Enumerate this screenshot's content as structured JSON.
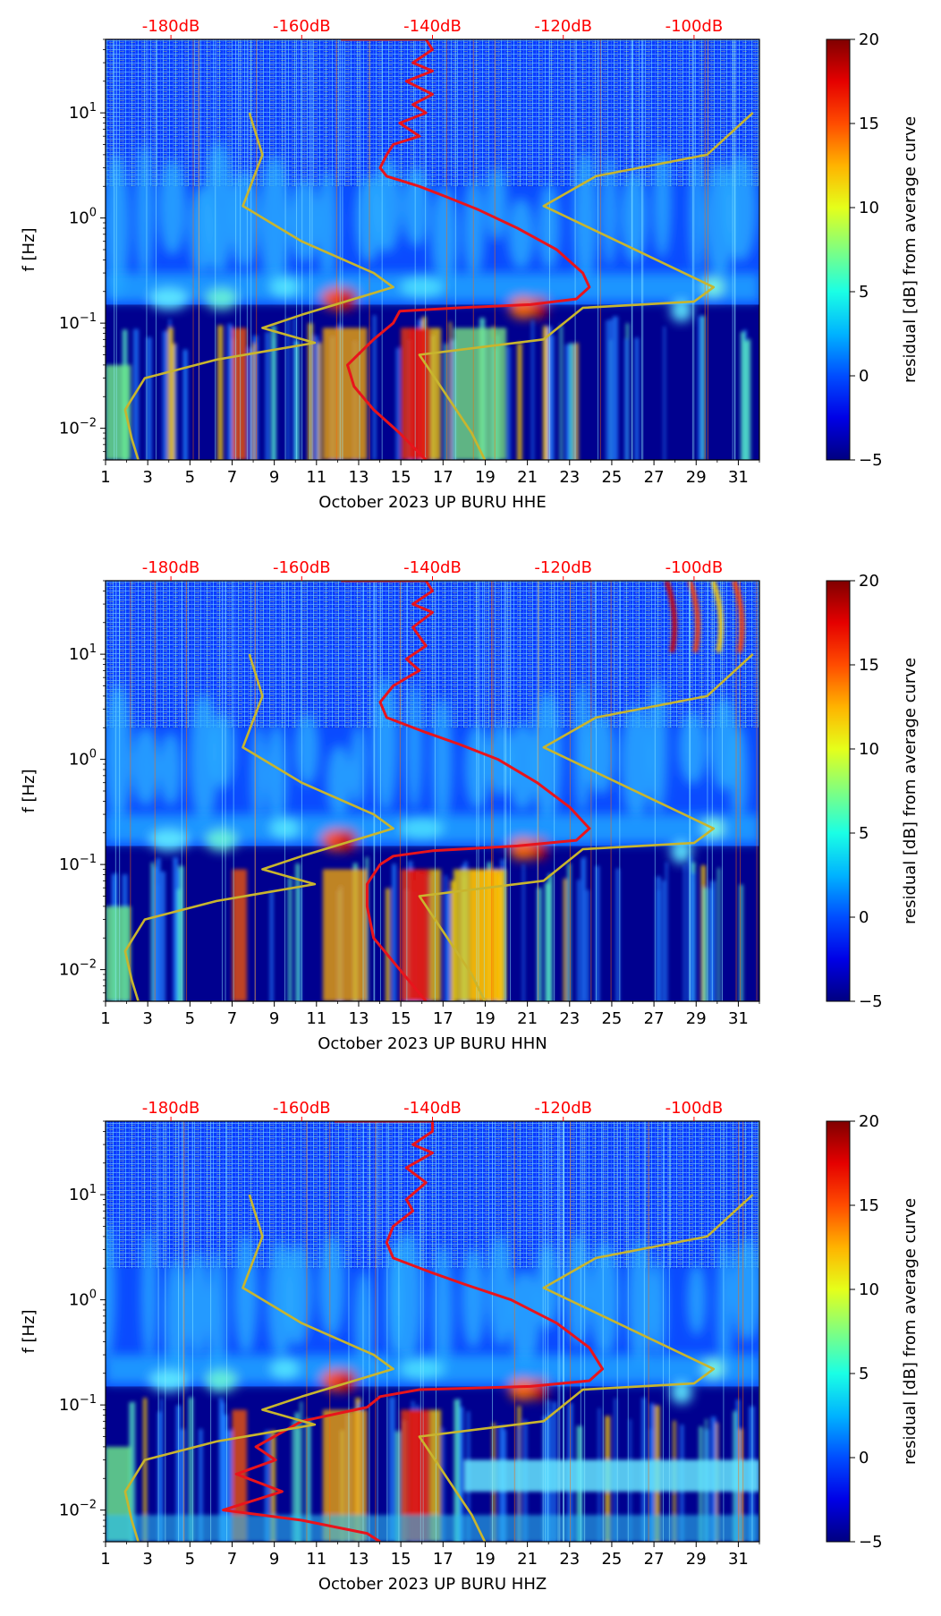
{
  "colors": {
    "psd_curve": "#e8141c",
    "noise_model": "#c8b52e",
    "top_axis": "#ff0000"
  },
  "colorbar": {
    "label": "residual [dB] from average curve",
    "colormap": "jet",
    "ticks": [
      "20",
      "15",
      "10",
      "5",
      "0",
      "−5"
    ],
    "range": [
      -5,
      20
    ]
  },
  "chart_data": [
    {
      "type": "heatmap",
      "xlabel": "October 2023 UP BURU  HHE",
      "ylabel": "f [Hz]",
      "xticks": [
        "1",
        "3",
        "5",
        "7",
        "9",
        "11",
        "13",
        "15",
        "17",
        "19",
        "21",
        "23",
        "25",
        "27",
        "29",
        "31"
      ],
      "xlim": [
        1,
        32
      ],
      "yticks": [
        {
          "base": "10",
          "exp": "1"
        },
        {
          "base": "10",
          "exp": "0"
        },
        {
          "base": "10",
          "exp": "−1"
        },
        {
          "base": "10",
          "exp": "−2"
        }
      ],
      "ylim": [
        0.005,
        50
      ],
      "top_ticks": [
        "-180dB",
        "-160dB",
        "-140dB",
        "-120dB",
        "-100dB"
      ],
      "top_range_db": [
        -190,
        -90
      ],
      "series": [
        {
          "name": "",
          "color": "#e8141c",
          "points_db_hz": [
            [
              -154,
              50
            ],
            [
              -141,
              50
            ],
            [
              -140,
              40
            ],
            [
              -143,
              30
            ],
            [
              -140,
              25
            ],
            [
              -144,
              20
            ],
            [
              -140,
              15
            ],
            [
              -143,
              12
            ],
            [
              -141,
              10
            ],
            [
              -145,
              8
            ],
            [
              -142,
              6
            ],
            [
              -146,
              5
            ],
            [
              -147,
              4
            ],
            [
              -148,
              3
            ],
            [
              -147,
              2.5
            ],
            [
              -142,
              2
            ],
            [
              -138,
              1.6
            ],
            [
              -133,
              1.2
            ],
            [
              -127,
              0.8
            ],
            [
              -121,
              0.5
            ],
            [
              -117,
              0.3
            ],
            [
              -116,
              0.22
            ],
            [
              -118,
              0.17
            ],
            [
              -125,
              0.15
            ],
            [
              -136,
              0.14
            ],
            [
              -145,
              0.13
            ],
            [
              -146,
              0.1
            ],
            [
              -149,
              0.07
            ],
            [
              -153,
              0.04
            ],
            [
              -152,
              0.025
            ],
            [
              -149,
              0.015
            ],
            [
              -145,
              0.009
            ],
            [
              -141,
              0.005
            ]
          ]
        },
        {
          "name": "",
          "color": "#c8b52e",
          "points_db_hz": [
            [
              -168,
              10
            ],
            [
              -166,
              4
            ],
            [
              -169,
              1.3
            ],
            [
              -160,
              0.6
            ],
            [
              -149,
              0.3
            ],
            [
              -146,
              0.22
            ],
            [
              -160,
              0.12
            ],
            [
              -166,
              0.09
            ],
            [
              -158,
              0.065
            ],
            [
              -173,
              0.045
            ],
            [
              -184,
              0.03
            ],
            [
              -187,
              0.015
            ],
            [
              -186,
              0.008
            ],
            [
              -185,
              0.005
            ]
          ]
        },
        {
          "name": "",
          "color": "#c8b52e",
          "points_db_hz": [
            [
              -91,
              10
            ],
            [
              -98,
              4
            ],
            [
              -115,
              2.5
            ],
            [
              -123,
              1.3
            ],
            [
              -97,
              0.22
            ],
            [
              -100,
              0.16
            ],
            [
              -117,
              0.14
            ],
            [
              -123,
              0.07
            ],
            [
              -142,
              0.05
            ],
            [
              -134,
              0.009
            ],
            [
              -132,
              0.005
            ]
          ]
        }
      ]
    },
    {
      "type": "heatmap",
      "xlabel": "October 2023 UP BURU  HHN",
      "ylabel": "f [Hz]",
      "xticks": [
        "1",
        "3",
        "5",
        "7",
        "9",
        "11",
        "13",
        "15",
        "17",
        "19",
        "21",
        "23",
        "25",
        "27",
        "29",
        "31"
      ],
      "xlim": [
        1,
        32
      ],
      "yticks": [
        {
          "base": "10",
          "exp": "1"
        },
        {
          "base": "10",
          "exp": "0"
        },
        {
          "base": "10",
          "exp": "−1"
        },
        {
          "base": "10",
          "exp": "−2"
        }
      ],
      "ylim": [
        0.005,
        50
      ],
      "top_ticks": [
        "-180dB",
        "-160dB",
        "-140dB",
        "-120dB",
        "-100dB"
      ],
      "top_range_db": [
        -190,
        -90
      ],
      "series": [
        {
          "name": "",
          "color": "#e8141c",
          "points_db_hz": [
            [
              -154,
              50
            ],
            [
              -141,
              50
            ],
            [
              -140,
              40
            ],
            [
              -143,
              30
            ],
            [
              -140,
              25
            ],
            [
              -143,
              18
            ],
            [
              -141,
              12
            ],
            [
              -144,
              9
            ],
            [
              -142,
              7
            ],
            [
              -146,
              5
            ],
            [
              -148,
              3.5
            ],
            [
              -147,
              2.5
            ],
            [
              -141,
              1.8
            ],
            [
              -136,
              1.4
            ],
            [
              -130,
              1
            ],
            [
              -124,
              0.6
            ],
            [
              -119,
              0.35
            ],
            [
              -116,
              0.22
            ],
            [
              -118,
              0.17
            ],
            [
              -127,
              0.15
            ],
            [
              -140,
              0.135
            ],
            [
              -146,
              0.12
            ],
            [
              -148,
              0.1
            ],
            [
              -150,
              0.065
            ],
            [
              -150,
              0.04
            ],
            [
              -149,
              0.02
            ],
            [
              -145,
              0.01
            ],
            [
              -141,
              0.005
            ]
          ]
        },
        {
          "name": "",
          "color": "#c8b52e",
          "points_db_hz": [
            [
              -168,
              10
            ],
            [
              -166,
              4
            ],
            [
              -169,
              1.3
            ],
            [
              -160,
              0.6
            ],
            [
              -149,
              0.3
            ],
            [
              -146,
              0.22
            ],
            [
              -160,
              0.12
            ],
            [
              -166,
              0.09
            ],
            [
              -158,
              0.065
            ],
            [
              -173,
              0.045
            ],
            [
              -184,
              0.03
            ],
            [
              -187,
              0.015
            ],
            [
              -186,
              0.008
            ],
            [
              -185,
              0.005
            ]
          ]
        },
        {
          "name": "",
          "color": "#c8b52e",
          "points_db_hz": [
            [
              -91,
              10
            ],
            [
              -98,
              4
            ],
            [
              -115,
              2.5
            ],
            [
              -123,
              1.3
            ],
            [
              -97,
              0.22
            ],
            [
              -100,
              0.16
            ],
            [
              -117,
              0.14
            ],
            [
              -123,
              0.07
            ],
            [
              -142,
              0.05
            ],
            [
              -134,
              0.009
            ],
            [
              -132,
              0.005
            ]
          ]
        }
      ]
    },
    {
      "type": "heatmap",
      "xlabel": "October 2023 UP BURU  HHZ",
      "ylabel": "f [Hz]",
      "xticks": [
        "1",
        "3",
        "5",
        "7",
        "9",
        "11",
        "13",
        "15",
        "17",
        "19",
        "21",
        "23",
        "25",
        "27",
        "29",
        "31"
      ],
      "xlim": [
        1,
        32
      ],
      "yticks": [
        {
          "base": "10",
          "exp": "1"
        },
        {
          "base": "10",
          "exp": "0"
        },
        {
          "base": "10",
          "exp": "−1"
        },
        {
          "base": "10",
          "exp": "−2"
        }
      ],
      "ylim": [
        0.005,
        50
      ],
      "top_ticks": [
        "-180dB",
        "-160dB",
        "-140dB",
        "-120dB",
        "-100dB"
      ],
      "top_range_db": [
        -190,
        -90
      ],
      "series": [
        {
          "name": "",
          "color": "#e8141c",
          "points_db_hz": [
            [
              -155,
              50
            ],
            [
              -140,
              50
            ],
            [
              -140,
              40
            ],
            [
              -143,
              30
            ],
            [
              -140,
              25
            ],
            [
              -144,
              18
            ],
            [
              -141,
              13
            ],
            [
              -144,
              9
            ],
            [
              -143,
              7
            ],
            [
              -146,
              5
            ],
            [
              -147,
              3.5
            ],
            [
              -146,
              2.5
            ],
            [
              -140,
              1.8
            ],
            [
              -135,
              1.4
            ],
            [
              -128,
              1
            ],
            [
              -121,
              0.6
            ],
            [
              -116,
              0.35
            ],
            [
              -114,
              0.22
            ],
            [
              -116,
              0.17
            ],
            [
              -125,
              0.15
            ],
            [
              -142,
              0.14
            ],
            [
              -148,
              0.12
            ],
            [
              -150,
              0.095
            ],
            [
              -160,
              0.07
            ],
            [
              -167,
              0.04
            ],
            [
              -164,
              0.03
            ],
            [
              -170,
              0.022
            ],
            [
              -163,
              0.015
            ],
            [
              -172,
              0.01
            ],
            [
              -160,
              0.008
            ],
            [
              -150,
              0.006
            ],
            [
              -148,
              0.005
            ]
          ]
        },
        {
          "name": "",
          "color": "#c8b52e",
          "points_db_hz": [
            [
              -168,
              10
            ],
            [
              -166,
              4
            ],
            [
              -169,
              1.3
            ],
            [
              -160,
              0.6
            ],
            [
              -149,
              0.3
            ],
            [
              -146,
              0.22
            ],
            [
              -160,
              0.12
            ],
            [
              -166,
              0.09
            ],
            [
              -158,
              0.065
            ],
            [
              -173,
              0.045
            ],
            [
              -184,
              0.03
            ],
            [
              -187,
              0.015
            ],
            [
              -186,
              0.008
            ],
            [
              -185,
              0.005
            ]
          ]
        },
        {
          "name": "",
          "color": "#c8b52e",
          "points_db_hz": [
            [
              -91,
              10
            ],
            [
              -98,
              4
            ],
            [
              -115,
              2.5
            ],
            [
              -123,
              1.3
            ],
            [
              -97,
              0.22
            ],
            [
              -100,
              0.16
            ],
            [
              -117,
              0.14
            ],
            [
              -123,
              0.07
            ],
            [
              -142,
              0.05
            ],
            [
              -134,
              0.009
            ],
            [
              -132,
              0.005
            ]
          ]
        }
      ]
    }
  ]
}
